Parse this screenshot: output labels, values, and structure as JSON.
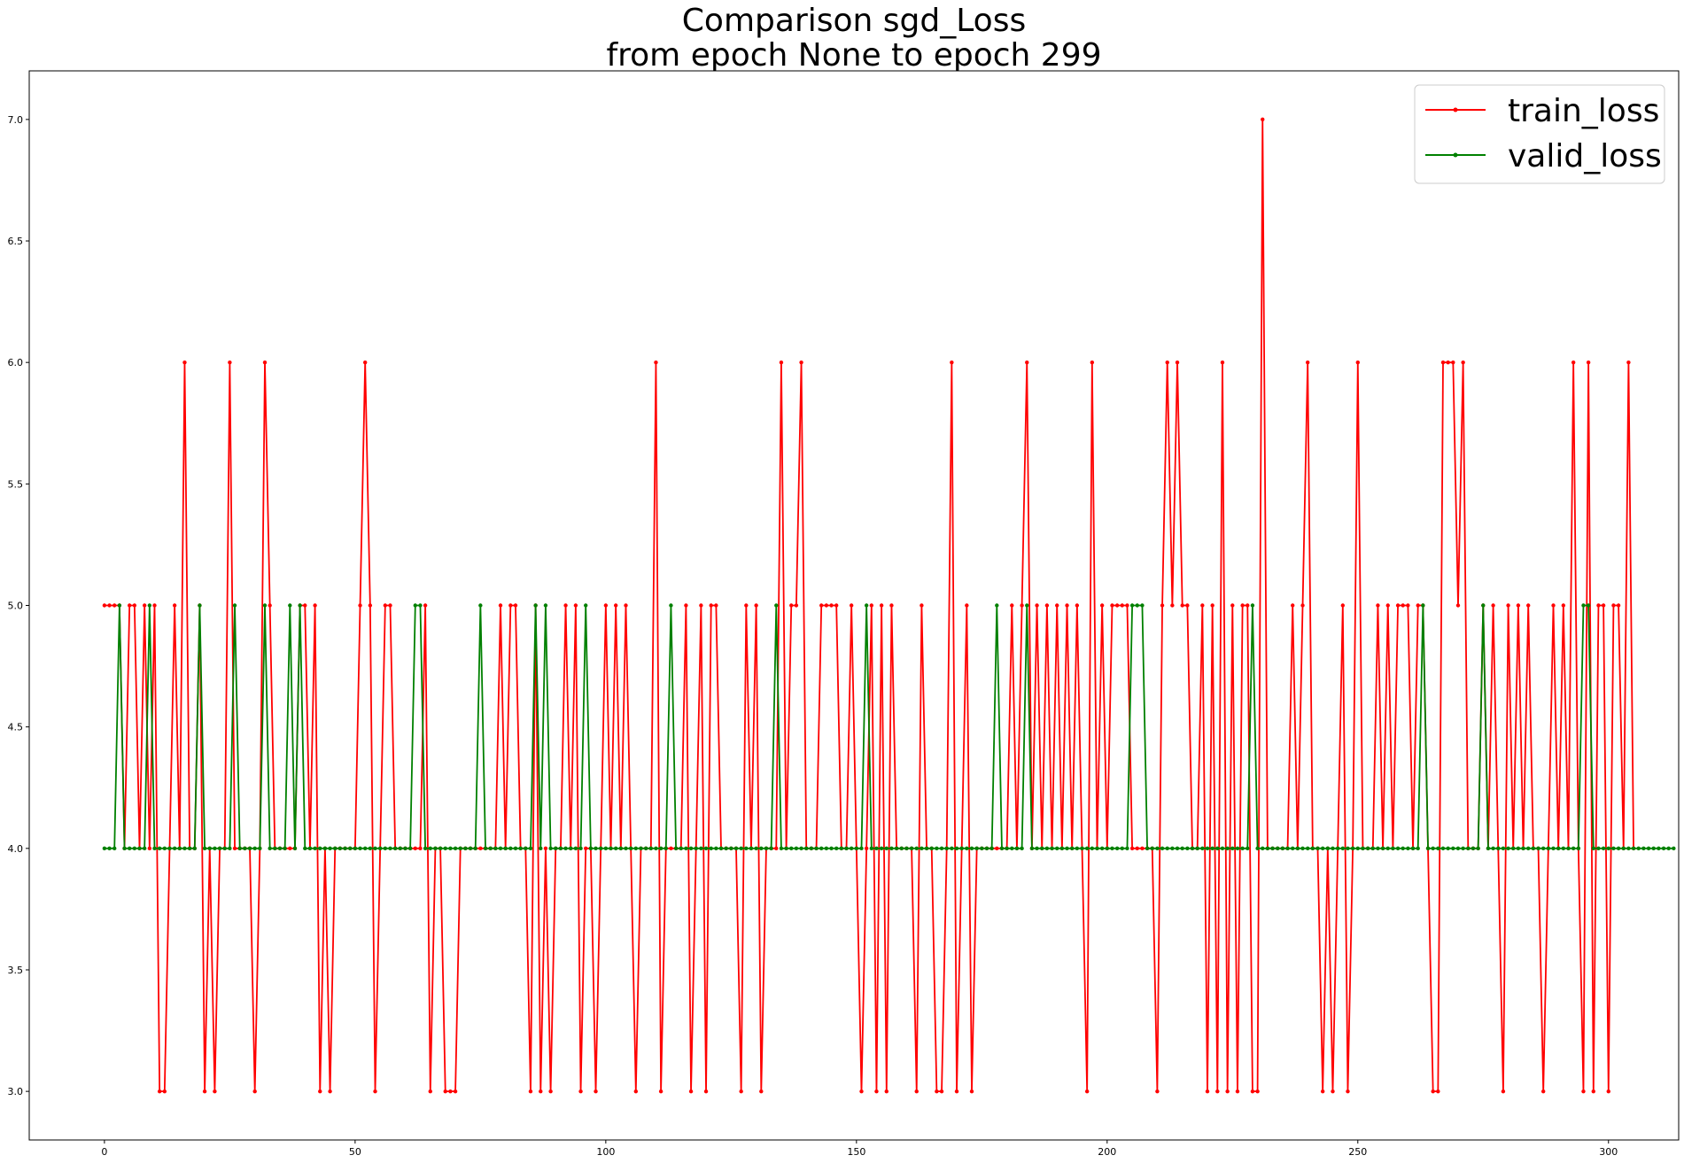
{
  "title_line1": "Comparison sgd_Loss",
  "title_line2": "from epoch None to epoch 299",
  "colors": {
    "train": "#ff0000",
    "valid": "#008000",
    "axes": "#000000",
    "legend_border": "#cccccc"
  },
  "chart_data": {
    "type": "line",
    "title": "Comparison sgd_Loss\nfrom epoch None to epoch 299",
    "xlabel": "",
    "ylabel": "",
    "xlim": [
      -15,
      314
    ],
    "ylim": [
      2.8,
      7.2
    ],
    "xticks": [
      0,
      50,
      100,
      150,
      200,
      250,
      300
    ],
    "yticks": [
      3.0,
      3.5,
      4.0,
      4.5,
      5.0,
      5.5,
      6.0,
      6.5,
      7.0
    ],
    "xtick_labels": [
      "0",
      "50",
      "100",
      "150",
      "200",
      "250",
      "300"
    ],
    "ytick_labels": [
      "3.0",
      "3.5",
      "4.0",
      "4.5",
      "5.0",
      "5.5",
      "6.0",
      "6.5",
      "7.0"
    ],
    "grid": false,
    "legend_position": "upper right",
    "series": [
      {
        "name": "train_loss",
        "color": "#ff0000",
        "marker": "dot",
        "values": [
          5,
          5,
          5,
          5,
          4,
          5,
          5,
          4,
          5,
          4,
          5,
          3,
          3,
          4,
          5,
          4,
          6,
          4,
          4,
          5,
          3,
          4,
          3,
          4,
          4,
          6,
          4,
          4,
          4,
          4,
          3,
          4,
          6,
          5,
          4,
          4,
          4,
          4,
          4,
          5,
          5,
          4,
          5,
          3,
          4,
          3,
          4,
          4,
          4,
          4,
          4,
          5,
          6,
          5,
          3,
          4,
          5,
          5,
          4,
          4,
          4,
          4,
          4,
          4,
          5,
          3,
          4,
          4,
          3,
          3,
          3,
          4,
          4,
          4,
          4,
          4,
          4,
          4,
          4,
          5,
          4,
          5,
          5,
          4,
          4,
          3,
          5,
          3,
          4,
          3,
          4,
          4,
          5,
          4,
          5,
          3,
          4,
          4,
          3,
          4,
          5,
          4,
          5,
          4,
          5,
          4,
          3,
          4,
          4,
          4,
          6,
          3,
          4,
          4,
          4,
          4,
          5,
          3,
          4,
          5,
          3,
          5,
          5,
          4,
          4,
          4,
          4,
          3,
          5,
          4,
          5,
          3,
          4,
          4,
          4,
          6,
          4,
          5,
          5,
          6,
          4,
          4,
          4,
          5,
          5,
          5,
          5,
          4,
          4,
          5,
          4,
          3,
          4,
          5,
          3,
          5,
          3,
          5,
          4,
          4,
          4,
          4,
          3,
          5,
          4,
          4,
          3,
          3,
          4,
          6,
          3,
          4,
          5,
          3,
          4,
          4,
          4,
          4,
          4,
          4,
          4,
          5,
          4,
          5,
          6,
          4,
          5,
          4,
          5,
          4,
          5,
          4,
          5,
          4,
          5,
          4,
          3,
          6,
          4,
          5,
          4,
          5,
          5,
          5,
          5,
          4,
          4,
          4,
          4,
          4,
          3,
          5,
          6,
          5,
          6,
          5,
          5,
          4,
          4,
          5,
          3,
          5,
          3,
          6,
          3,
          5,
          3,
          5,
          5,
          3,
          3,
          7,
          4,
          4,
          4,
          4,
          4,
          5,
          4,
          5,
          6,
          4,
          4,
          3,
          4,
          3,
          4,
          5,
          3,
          4,
          6,
          4,
          4,
          4,
          5,
          4,
          5,
          4,
          5,
          5,
          5,
          4,
          5,
          5,
          4,
          3,
          3,
          6,
          6,
          6,
          5,
          6,
          4,
          4,
          4,
          5,
          4,
          5,
          4,
          3,
          5,
          4,
          5,
          4,
          5,
          4,
          4,
          3,
          4,
          5,
          4,
          5,
          4,
          6,
          4,
          3,
          6,
          3,
          5,
          5,
          3,
          5,
          5,
          4,
          6,
          4
        ]
      },
      {
        "name": "valid_loss",
        "color": "#008000",
        "marker": "dot",
        "values": [
          4,
          4,
          4,
          5,
          4,
          4,
          4,
          4,
          4,
          5,
          4,
          4,
          4,
          4,
          4,
          4,
          4,
          4,
          4,
          5,
          4,
          4,
          4,
          4,
          4,
          4,
          5,
          4,
          4,
          4,
          4,
          4,
          5,
          4,
          4,
          4,
          4,
          5,
          4,
          5,
          4,
          4,
          4,
          4,
          4,
          4,
          4,
          4,
          4,
          4,
          4,
          4,
          4,
          4,
          4,
          4,
          4,
          4,
          4,
          4,
          4,
          4,
          5,
          5,
          4,
          4,
          4,
          4,
          4,
          4,
          4,
          4,
          4,
          4,
          4,
          5,
          4,
          4,
          4,
          4,
          4,
          4,
          4,
          4,
          4,
          4,
          5,
          4,
          5,
          4,
          4,
          4,
          4,
          4,
          4,
          4,
          5,
          4,
          4,
          4,
          4,
          4,
          4,
          4,
          4,
          4,
          4,
          4,
          4,
          4,
          4,
          4,
          4,
          5,
          4,
          4,
          4,
          4,
          4,
          4,
          4,
          4,
          4,
          4,
          4,
          4,
          4,
          4,
          4,
          4,
          4,
          4,
          4,
          4,
          5,
          4,
          4,
          4,
          4,
          4,
          4,
          4,
          4,
          4,
          4,
          4,
          4,
          4,
          4,
          4,
          4,
          4,
          5,
          4,
          4,
          4,
          4,
          4,
          4,
          4,
          4,
          4,
          4,
          4,
          4,
          4,
          4,
          4,
          4,
          4,
          4,
          4,
          4,
          4,
          4,
          4,
          4,
          4,
          5,
          4,
          4,
          4,
          4,
          4,
          5,
          4,
          4,
          4,
          4,
          4,
          4,
          4,
          4,
          4,
          4,
          4,
          4,
          4,
          4,
          4,
          4,
          4,
          4,
          4,
          4,
          5,
          5,
          5,
          4,
          4,
          4,
          4,
          4,
          4,
          4,
          4,
          4,
          4,
          4,
          4,
          4,
          4,
          4,
          4,
          4,
          4,
          4,
          4,
          4,
          5,
          4,
          4,
          4,
          4,
          4,
          4,
          4,
          4,
          4,
          4,
          4,
          4,
          4,
          4,
          4,
          4,
          4,
          4,
          4,
          4,
          4,
          4,
          4,
          4,
          4,
          4,
          4,
          4,
          4,
          4,
          4,
          4,
          4,
          5,
          4,
          4,
          4,
          4,
          4,
          4,
          4,
          4,
          4,
          4,
          4,
          5,
          4,
          4,
          4,
          4,
          4,
          4,
          4,
          4,
          4,
          4,
          4,
          4,
          4,
          4,
          4,
          4,
          4,
          4,
          4,
          5,
          5,
          4,
          4,
          4,
          4,
          4,
          4,
          4,
          4,
          4,
          4,
          4,
          4,
          4,
          4,
          4,
          4,
          4
        ]
      }
    ]
  }
}
